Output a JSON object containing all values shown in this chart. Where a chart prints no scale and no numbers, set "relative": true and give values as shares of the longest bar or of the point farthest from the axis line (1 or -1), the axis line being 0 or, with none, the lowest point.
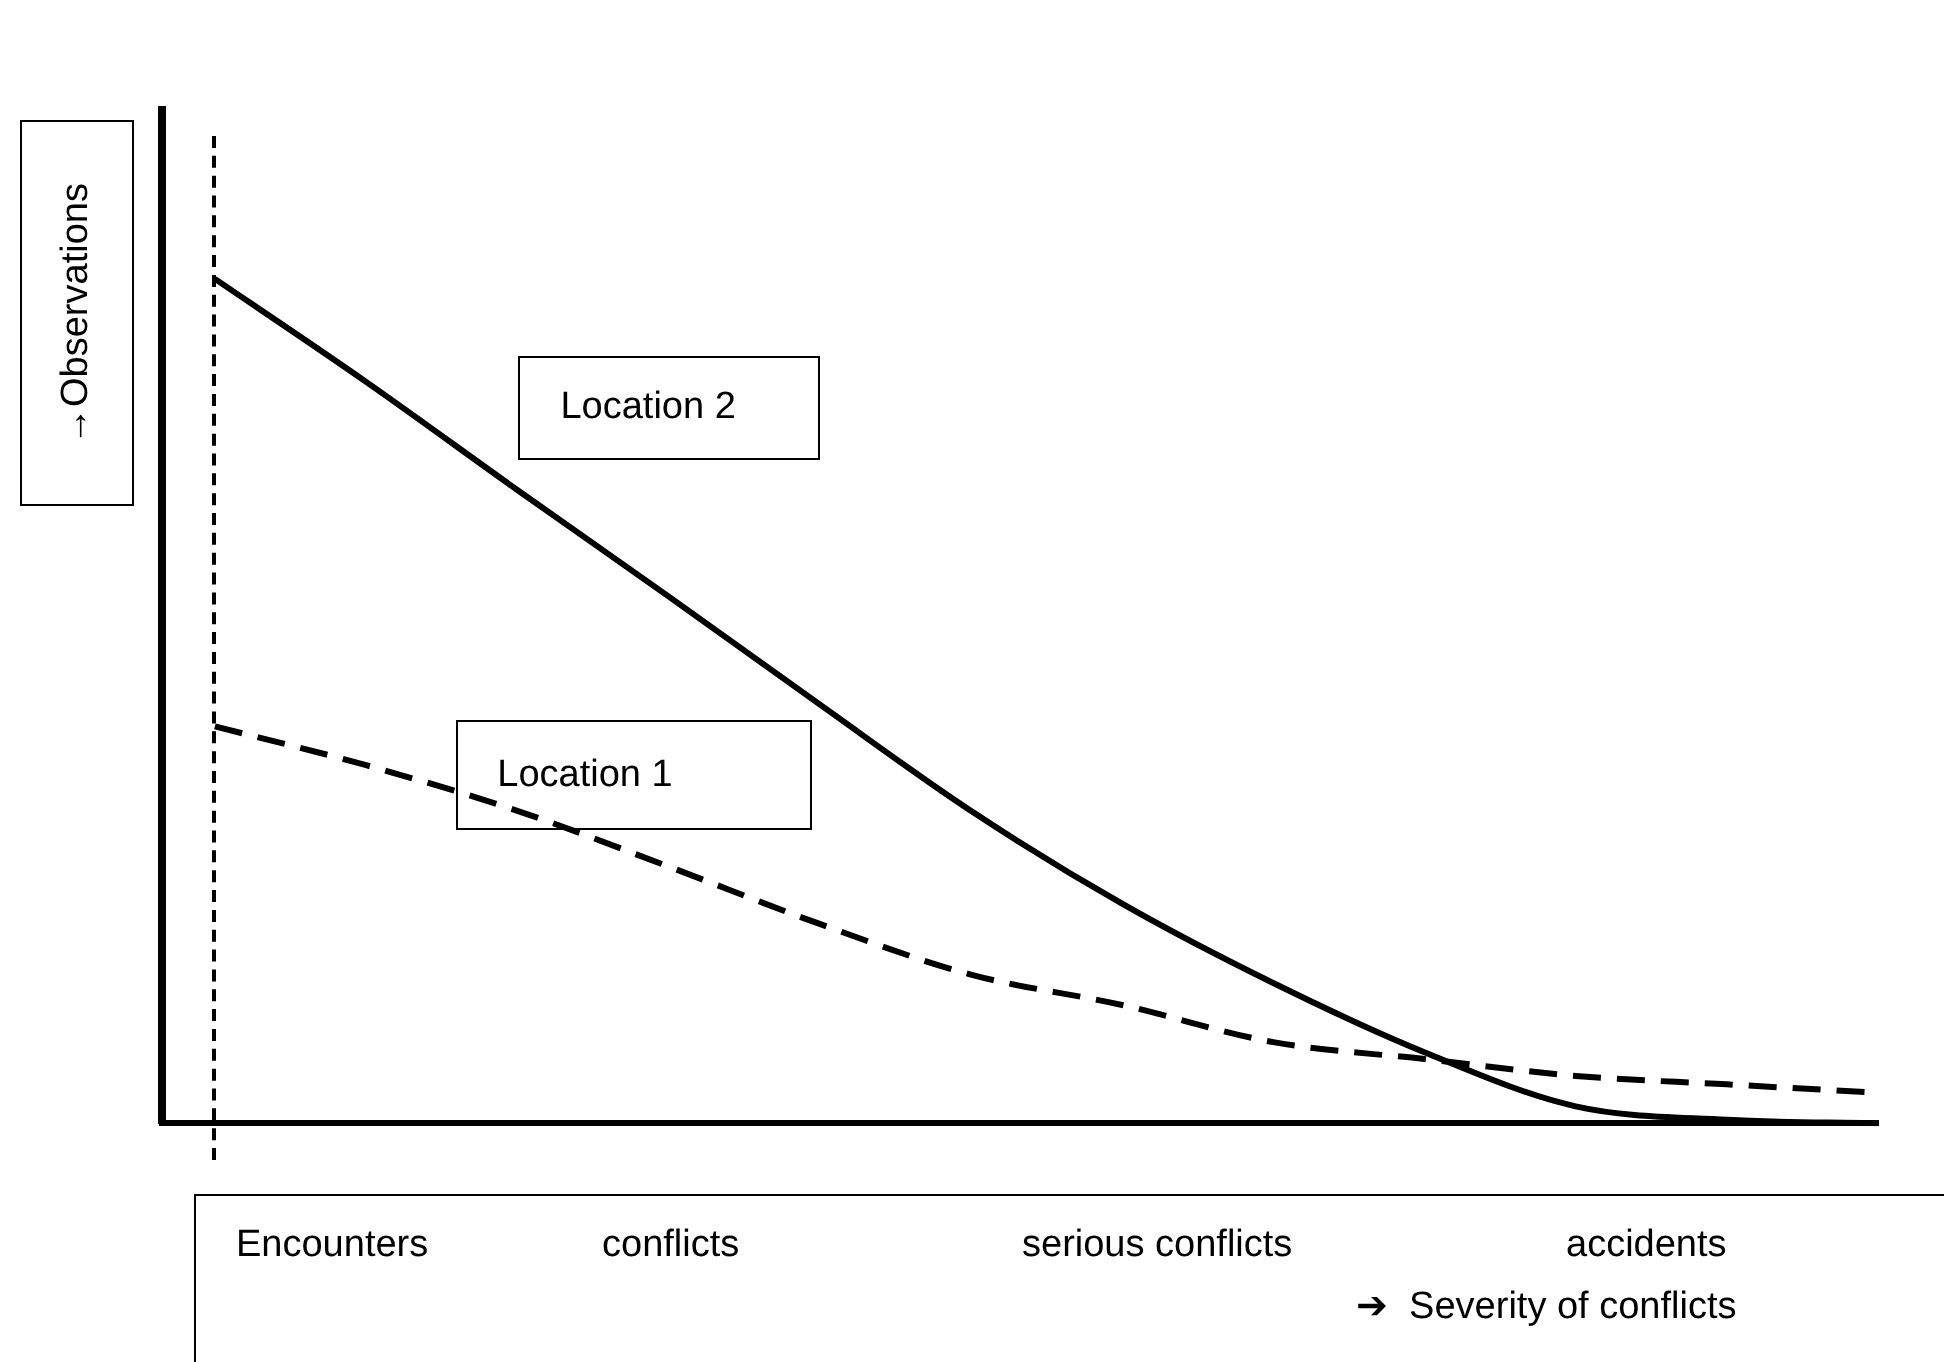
{
  "chart_data": {
    "type": "line",
    "relative": true,
    "ylabel": "→Observations",
    "xlabel": "➔  Severity of conflicts",
    "annotations": [
      "Encounters",
      "conflicts",
      "serious conflicts",
      "accidents"
    ],
    "categories": [
      null,
      null,
      null,
      null,
      null,
      null,
      null,
      null,
      null,
      null,
      null,
      null
    ],
    "series": [
      {
        "name": "Location 2",
        "color": "#000000",
        "line_style": "solid",
        "values": [
          1,
          0.878,
          0.75,
          0.624,
          0.496,
          0.37,
          0.26,
          0.166,
          0.084,
          0.02,
          0.004,
          0
        ]
      },
      {
        "name": "Location 1",
        "color": "#000000",
        "line_style": "dashed",
        "values": [
          0.47,
          0.424,
          0.37,
          0.304,
          0.236,
          0.176,
          0.14,
          0.096,
          0.076,
          0.056,
          0.046,
          0.036
        ]
      }
    ],
    "legend": false,
    "grid": false,
    "marker": "none"
  }
}
